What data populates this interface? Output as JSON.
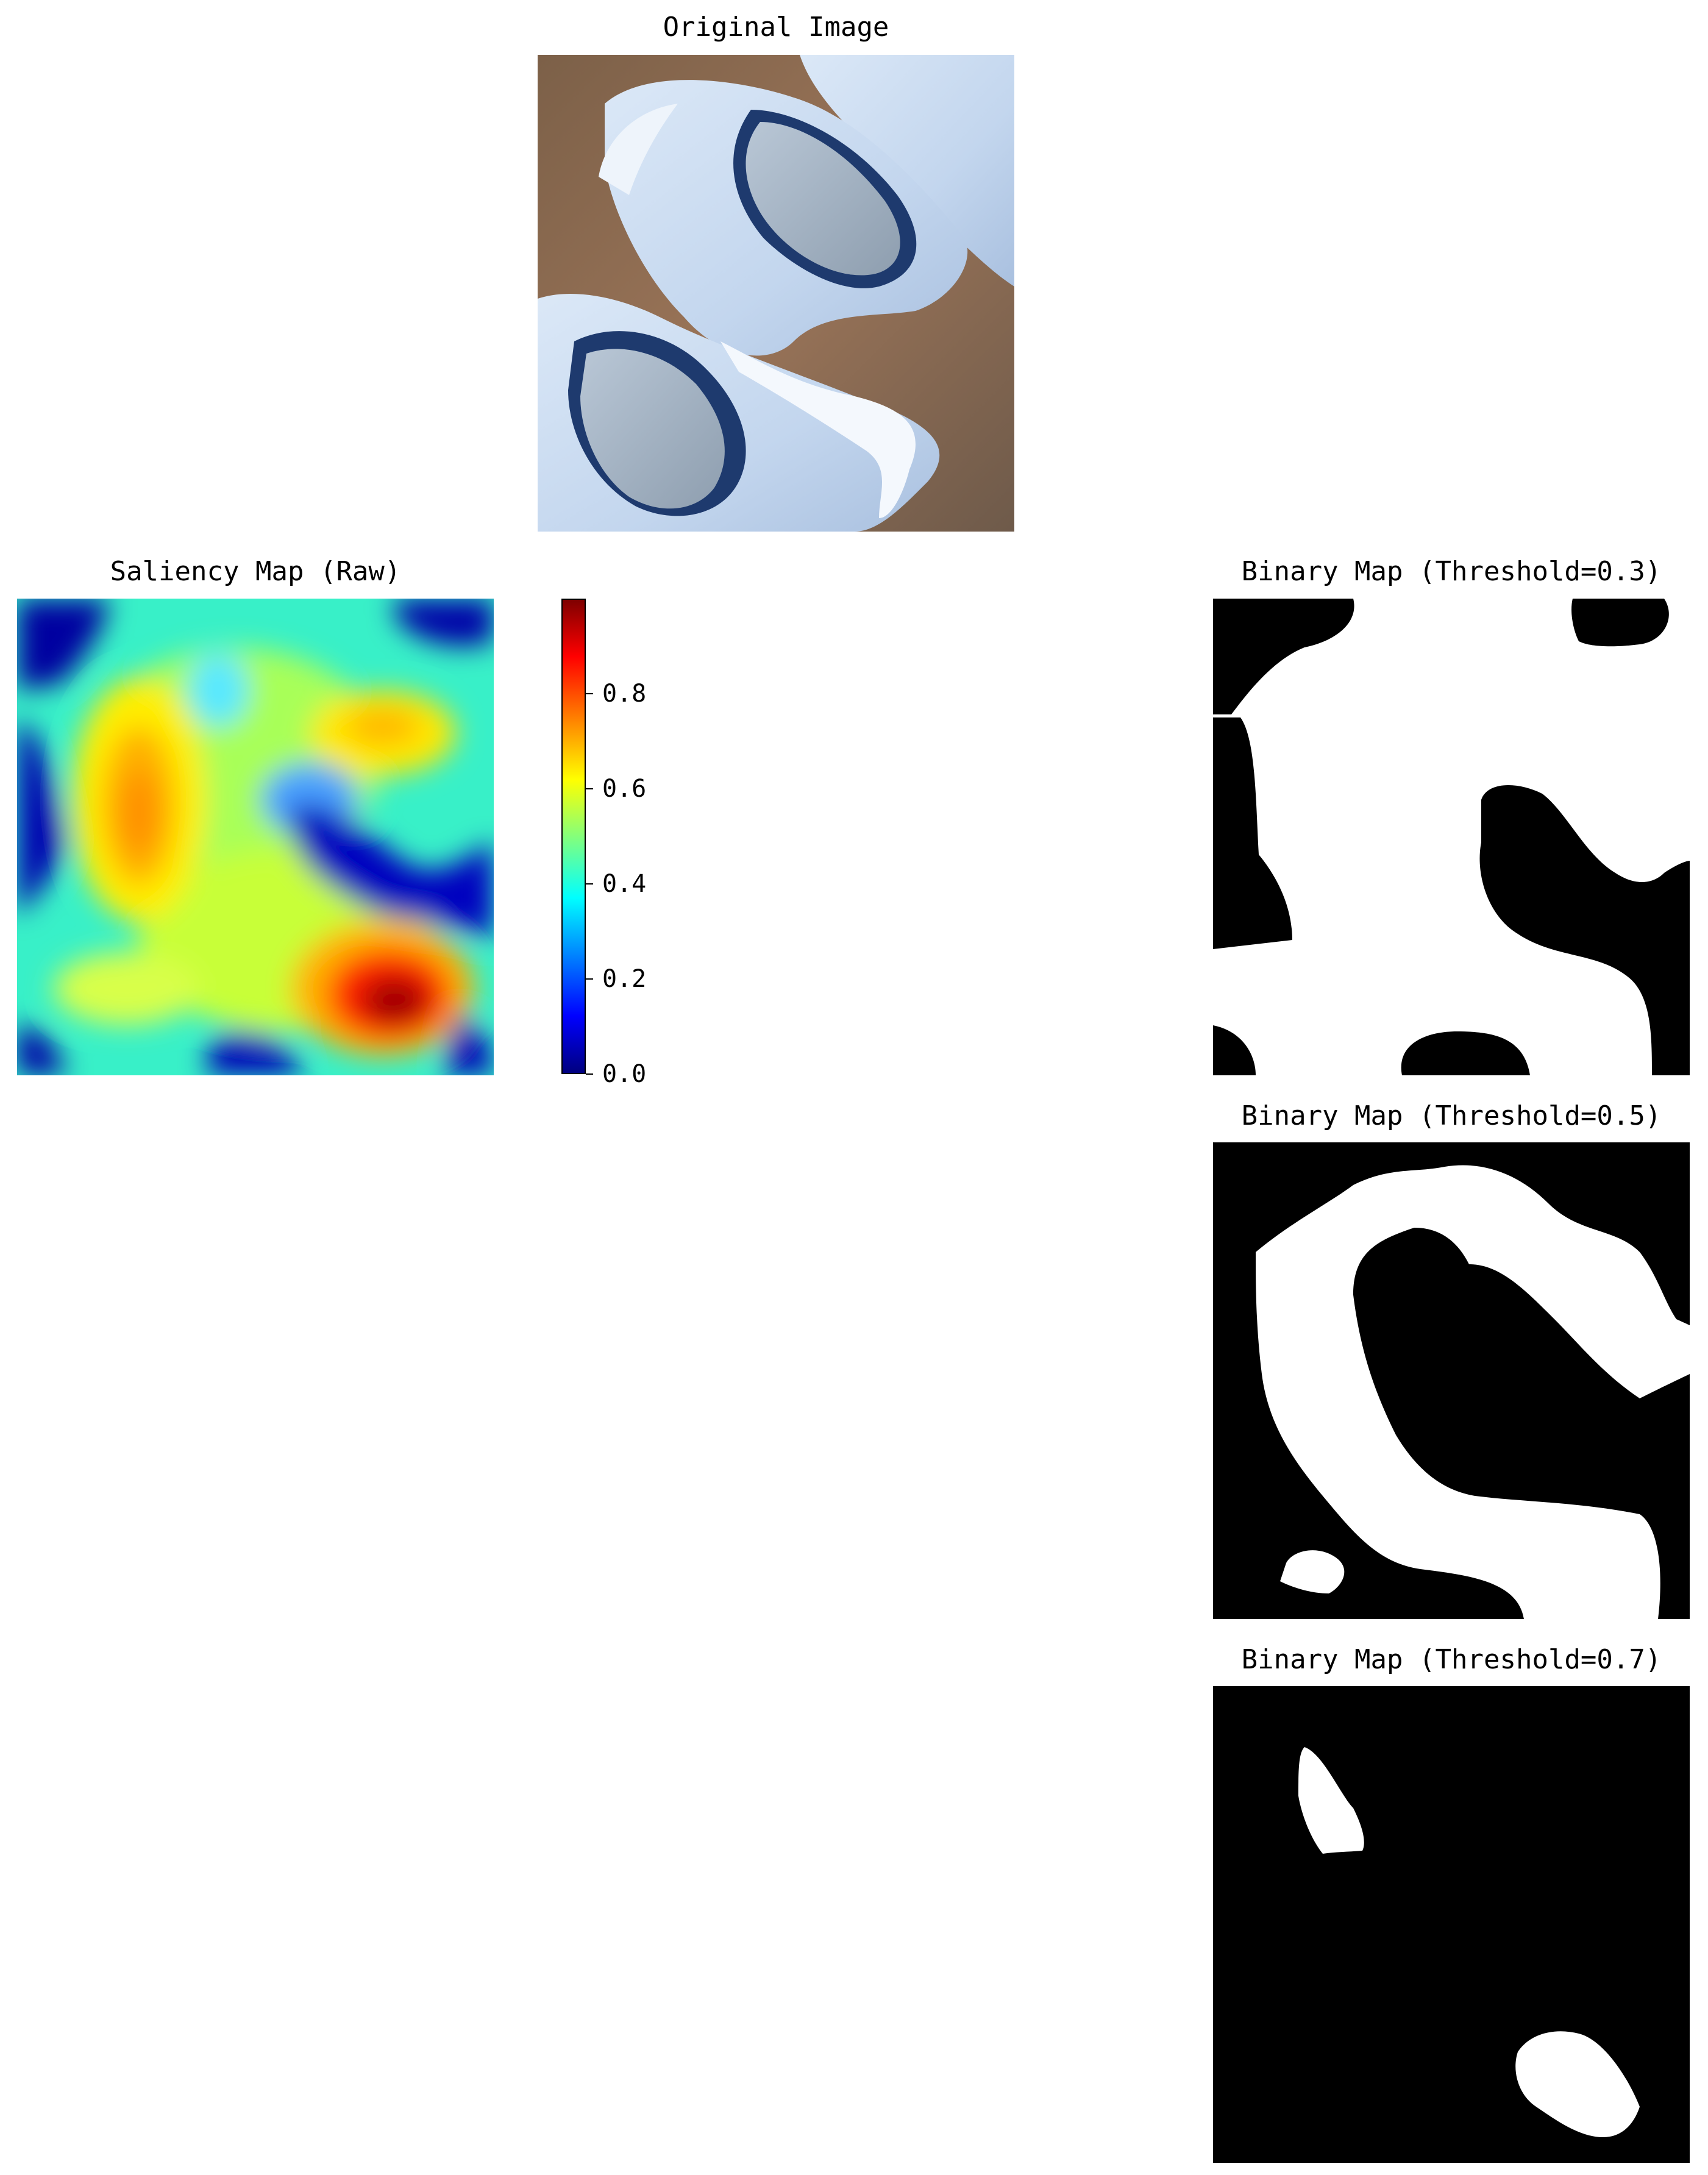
{
  "panels": {
    "original": {
      "title": "Original Image"
    },
    "saliency": {
      "title": "Saliency Map (Raw)",
      "colormap": "jet"
    },
    "binary_03": {
      "title": "Binary Map (Threshold=0.3)",
      "threshold": 0.3
    },
    "binary_05": {
      "title": "Binary Map (Threshold=0.5)",
      "threshold": 0.5
    },
    "binary_07": {
      "title": "Binary Map (Threshold=0.7)",
      "threshold": 0.7
    }
  },
  "colorbar": {
    "min": 0.0,
    "max": 1.0,
    "ticks": [
      "0.0",
      "0.2",
      "0.4",
      "0.6",
      "0.8"
    ],
    "tick_values": [
      0.0,
      0.2,
      0.4,
      0.6,
      0.8
    ]
  },
  "colors": {
    "jet_low": "#00007f",
    "jet_blue": "#0000ff",
    "jet_cyan": "#00ffff",
    "jet_yellow": "#ffff00",
    "jet_red": "#ff0000",
    "jet_high": "#7f0000",
    "porcelain": "#c8dcf2",
    "background_soil": "#8a6a50"
  }
}
